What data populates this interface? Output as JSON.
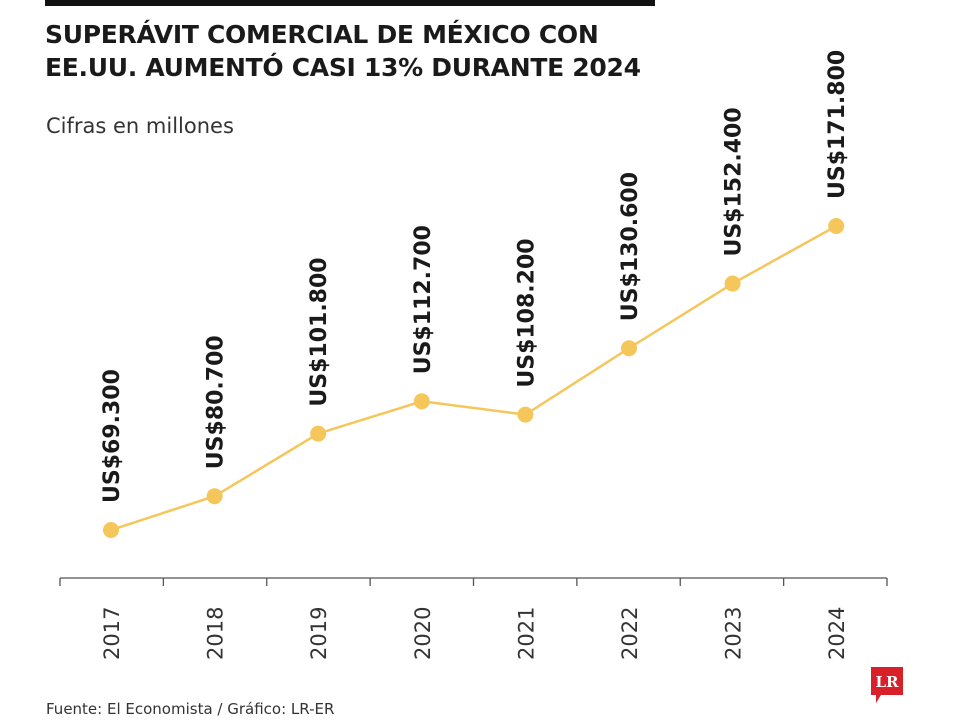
{
  "header": {
    "title_line1": "SUPERÁVIT COMERCIAL DE MÉXICO CON",
    "title_line2": "EE.UU. AUMENTÓ CASI 13% DURANTE 2024",
    "subtitle": "Cifras en millones"
  },
  "footer": {
    "source": "Fuente: El Economista / Gráfico: LR-ER",
    "logo_text": "LR"
  },
  "colors": {
    "accent": "#F5C65A",
    "axis": "#555555",
    "logo": "#D8202A"
  },
  "chart_data": {
    "type": "line",
    "title": "SUPERÁVIT COMERCIAL DE MÉXICO CON EE.UU. AUMENTÓ CASI 13% DURANTE 2024",
    "subtitle": "Cifras en millones",
    "categories": [
      "2017",
      "2018",
      "2019",
      "2020",
      "2021",
      "2022",
      "2023",
      "2024"
    ],
    "values": [
      69300,
      80700,
      101800,
      112700,
      108200,
      130600,
      152400,
      171800
    ],
    "labels": [
      "US$69.300",
      "US$80.700",
      "US$101.800",
      "US$112.700",
      "US$108.200",
      "US$130.600",
      "US$152.400",
      "US$171.800"
    ],
    "ylim": [
      60000,
      175000
    ],
    "grid": false,
    "legend": "none"
  }
}
